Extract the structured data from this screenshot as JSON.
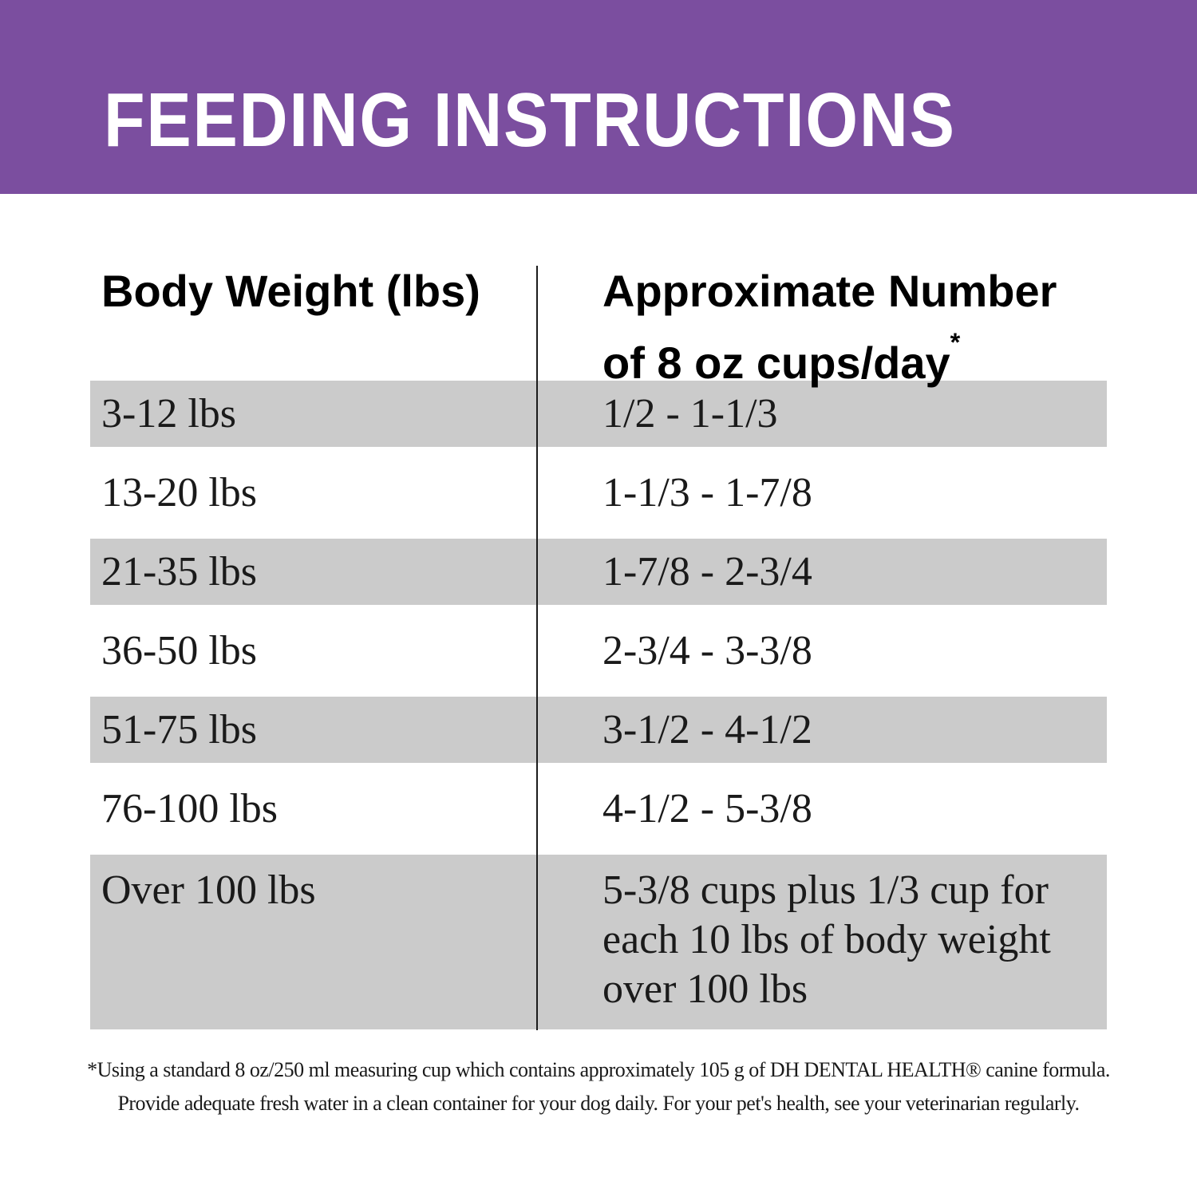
{
  "banner": {
    "title": "FEEDING INSTRUCTIONS"
  },
  "table": {
    "header": {
      "weight_label": "Body Weight (lbs)",
      "cups_label_line1": "Approximate Number",
      "cups_label_line2": "of 8 oz cups/day",
      "footnote_marker": "*"
    },
    "rows": [
      {
        "weight": "3-12 lbs",
        "cups": "1/2 - 1-1/3"
      },
      {
        "weight": "13-20 lbs",
        "cups": "1-1/3 - 1-7/8"
      },
      {
        "weight": "21-35 lbs",
        "cups": "1-7/8 - 2-3/4"
      },
      {
        "weight": "36-50 lbs",
        "cups": "2-3/4 - 3-3/8"
      },
      {
        "weight": "51-75 lbs",
        "cups": "3-1/2 - 4-1/2"
      },
      {
        "weight": "76-100 lbs",
        "cups": "4-1/2 - 5-3/8"
      },
      {
        "weight": "Over 100 lbs",
        "cups": "5-3/8 cups plus 1/3 cup for each 10 lbs of body weight over 100 lbs"
      }
    ]
  },
  "footnote": {
    "line1": "*Using a standard 8 oz/250 ml measuring cup which contains approximately 105 g of DH DENTAL HEALTH® canine formula.",
    "line2": "Provide adequate fresh water in a clean container for your dog daily. For your pet's health, see your veterinarian regularly."
  },
  "colors": {
    "banner_purple": "#7B4E9F",
    "row_shade_gray": "#CBCBCB",
    "text_black": "#1A1A1A"
  }
}
